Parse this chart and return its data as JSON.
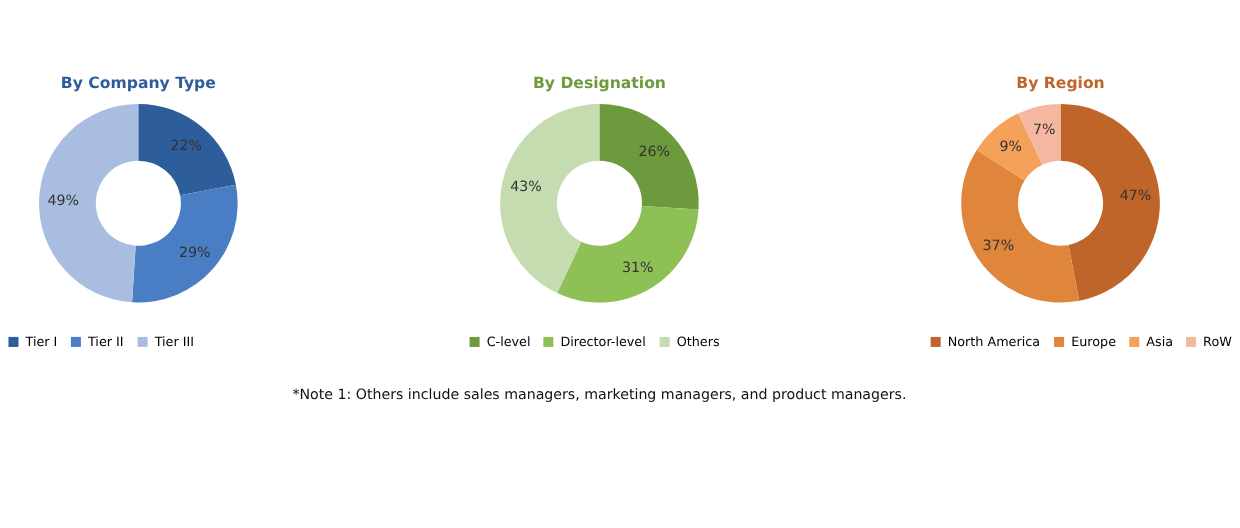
{
  "chart_data": [
    {
      "type": "donut",
      "title": "By Company Type",
      "categories": [
        "Tier I",
        "Tier II",
        "Tier III"
      ],
      "values": [
        22,
        29,
        49
      ],
      "value_labels": [
        "22%",
        "29%",
        "49%"
      ],
      "colors": [
        "#2e5d9c",
        "#4a7ec4",
        "#a9bde0"
      ],
      "legend": "bottom"
    },
    {
      "type": "donut",
      "title": "By Designation",
      "categories": [
        "C-level",
        "Director-level",
        "Others"
      ],
      "values": [
        26,
        31,
        43
      ],
      "value_labels": [
        "26%",
        "31%",
        "43%"
      ],
      "colors": [
        "#6e9a3e",
        "#8fc056",
        "#c5dbb0"
      ],
      "legend": "bottom",
      "annotations": [
        "*Note 1: Others include sales managers, marketing managers, and product managers."
      ]
    },
    {
      "type": "donut",
      "title": "By Region",
      "categories": [
        "North America",
        "Europe",
        "Asia",
        "RoW"
      ],
      "values": [
        47,
        37,
        9,
        7
      ],
      "value_labels": [
        "47%",
        "37%",
        "9%",
        "7%"
      ],
      "colors": [
        "#c0652a",
        "#e0853c",
        "#f4a15a",
        "#f5b7a0"
      ],
      "legend": "bottom"
    }
  ]
}
